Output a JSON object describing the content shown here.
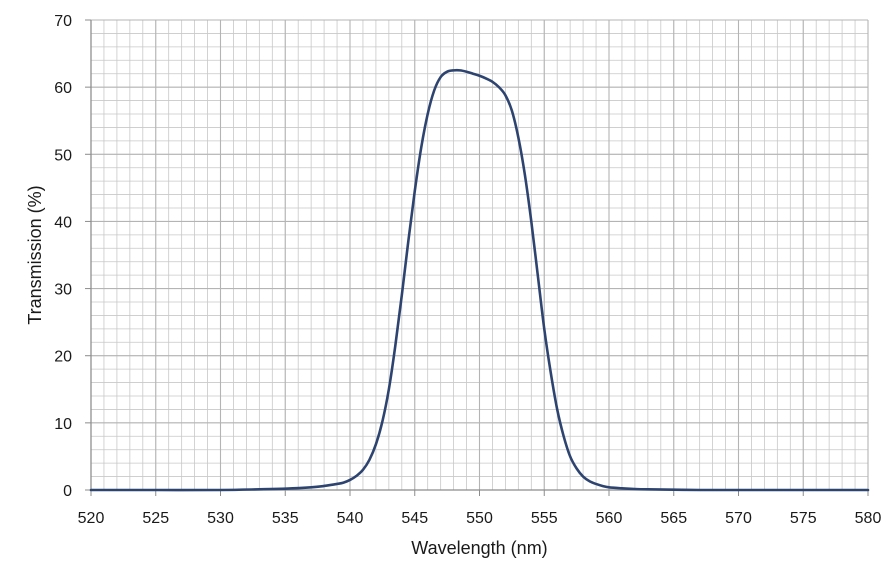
{
  "chart_data": {
    "type": "line",
    "title": "",
    "xlabel": "Wavelength (nm)",
    "ylabel": "Transmission (%)",
    "xlim": [
      520,
      580
    ],
    "ylim": [
      0,
      70
    ],
    "x_ticks": [
      520,
      525,
      530,
      535,
      540,
      545,
      550,
      555,
      560,
      565,
      570,
      575,
      580
    ],
    "y_ticks": [
      0,
      10,
      20,
      30,
      40,
      50,
      60,
      70
    ],
    "x_minor_step": 1,
    "y_minor_step": 2,
    "grid": true,
    "legend": "none",
    "colors": {
      "line": "#2e4470",
      "grid": "#c8c8c8",
      "axis": "#8c8c8c"
    },
    "series": [
      {
        "x": [
          520,
          525,
          530,
          533,
          535,
          537,
          538,
          539,
          539.5,
          540,
          540.5,
          541,
          541.5,
          542,
          542.5,
          543,
          543.5,
          544,
          544.5,
          545,
          545.5,
          546,
          546.5,
          547,
          547.5,
          548,
          548.5,
          549,
          549.5,
          550,
          550.5,
          551,
          551.5,
          552,
          552.5,
          553,
          553.5,
          554,
          554.5,
          555,
          555.5,
          556,
          556.5,
          557,
          557.5,
          558,
          558.5,
          559,
          559.5,
          560,
          561,
          562,
          563,
          565,
          567,
          570,
          575,
          580
        ],
        "y": [
          0,
          0,
          0,
          0.1,
          0.2,
          0.4,
          0.6,
          0.9,
          1.1,
          1.5,
          2.1,
          3.0,
          4.5,
          6.8,
          10.2,
          15.0,
          21.5,
          29.0,
          37.0,
          44.5,
          51.0,
          56.0,
          59.5,
          61.5,
          62.3,
          62.5,
          62.5,
          62.3,
          62.0,
          61.7,
          61.3,
          60.8,
          60.0,
          58.8,
          56.5,
          52.5,
          47.0,
          40.0,
          32.0,
          24.0,
          17.5,
          12.0,
          8.0,
          5.0,
          3.2,
          2.0,
          1.3,
          0.9,
          0.6,
          0.4,
          0.25,
          0.15,
          0.1,
          0.05,
          0,
          0,
          0,
          0
        ]
      }
    ]
  }
}
